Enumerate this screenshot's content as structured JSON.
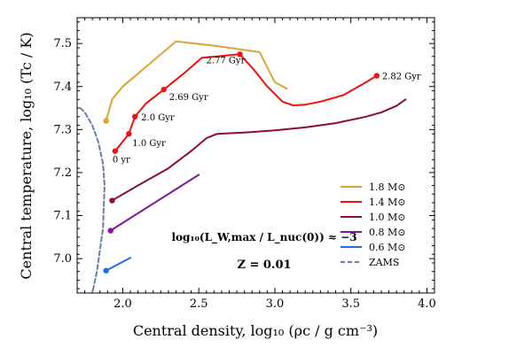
{
  "chart_data": {
    "type": "line",
    "xlabel": "Central density, log₁₀ (ρc / g cm⁻³)",
    "ylabel": "Central temperature, log₁₀ (Tc / K)",
    "xlim": [
      1.7,
      4.05
    ],
    "ylim": [
      6.92,
      7.56
    ],
    "xticks": [
      "2.0",
      "2.5",
      "3.0",
      "3.5",
      "4.0"
    ],
    "yticks": [
      "7.0",
      "7.1",
      "7.2",
      "7.3",
      "7.4",
      "7.5"
    ],
    "grid": false,
    "legend_position": "lower-right",
    "equation_text": "log₁₀(L_W,max / L_nuc(0)) ≈ −3",
    "metallicity_text": "Z = 0.01",
    "series": [
      {
        "name": "1.8 M⊙",
        "color": "#dba531",
        "dash": false,
        "x": [
          1.89,
          1.93,
          2.0,
          2.1,
          2.2,
          2.35,
          2.6,
          2.9,
          3.0,
          3.08
        ],
        "y": [
          7.32,
          7.37,
          7.4,
          7.43,
          7.46,
          7.505,
          7.495,
          7.48,
          7.41,
          7.395
        ],
        "markers": [
          {
            "x": 1.89,
            "y": 7.32
          }
        ]
      },
      {
        "name": "1.4 M⊙",
        "color": "#f20f0f",
        "dash": false,
        "x": [
          1.95,
          2.04,
          2.08,
          2.15,
          2.27,
          2.4,
          2.52,
          2.77,
          2.86,
          2.95,
          3.05,
          3.12,
          3.2,
          3.3,
          3.45,
          3.6,
          3.67
        ],
        "y": [
          7.25,
          7.29,
          7.33,
          7.36,
          7.393,
          7.43,
          7.467,
          7.475,
          7.44,
          7.4,
          7.365,
          7.356,
          7.358,
          7.365,
          7.38,
          7.41,
          7.425
        ],
        "markers": [
          {
            "x": 1.95,
            "y": 7.25,
            "label": "0 yr"
          },
          {
            "x": 2.04,
            "y": 7.29,
            "label": "1.0 Gyr"
          },
          {
            "x": 2.08,
            "y": 7.33,
            "label": "2.0 Gyr"
          },
          {
            "x": 2.27,
            "y": 7.393,
            "label": "2.69 Gyr"
          },
          {
            "x": 2.77,
            "y": 7.475,
            "label": "2.77 Gyr"
          },
          {
            "x": 3.67,
            "y": 7.425,
            "label": "2.82 Gyr"
          }
        ]
      },
      {
        "name": "1.0 M⊙",
        "color": "#8a0f35",
        "dash": false,
        "x": [
          1.93,
          2.1,
          2.3,
          2.45,
          2.5,
          2.55,
          2.62,
          2.8,
          3.0,
          3.2,
          3.4,
          3.6,
          3.7,
          3.8,
          3.86
        ],
        "y": [
          7.135,
          7.17,
          7.21,
          7.25,
          7.265,
          7.28,
          7.29,
          7.293,
          7.298,
          7.305,
          7.315,
          7.33,
          7.34,
          7.355,
          7.37
        ],
        "markers": [
          {
            "x": 1.93,
            "y": 7.135
          }
        ]
      },
      {
        "name": "0.8 M⊙",
        "color": "#80169c",
        "dash": false,
        "x": [
          1.92,
          2.5
        ],
        "y": [
          7.065,
          7.195
        ],
        "markers": [
          {
            "x": 1.92,
            "y": 7.065
          }
        ]
      },
      {
        "name": "0.6 M⊙",
        "color": "#1f6fe0",
        "dash": false,
        "x": [
          1.89,
          2.05
        ],
        "y": [
          6.972,
          7.002
        ],
        "markers": [
          {
            "x": 1.89,
            "y": 6.972
          }
        ]
      },
      {
        "name": "ZAMS",
        "color": "#6d7fa0",
        "dash": true,
        "x": [
          1.72,
          1.75,
          1.8,
          1.84,
          1.87,
          1.88,
          1.875,
          1.87,
          1.85,
          1.83,
          1.8
        ],
        "y": [
          7.35,
          7.34,
          7.31,
          7.27,
          7.22,
          7.17,
          7.12,
          7.07,
          7.02,
          6.97,
          6.92
        ],
        "markers": []
      }
    ]
  }
}
